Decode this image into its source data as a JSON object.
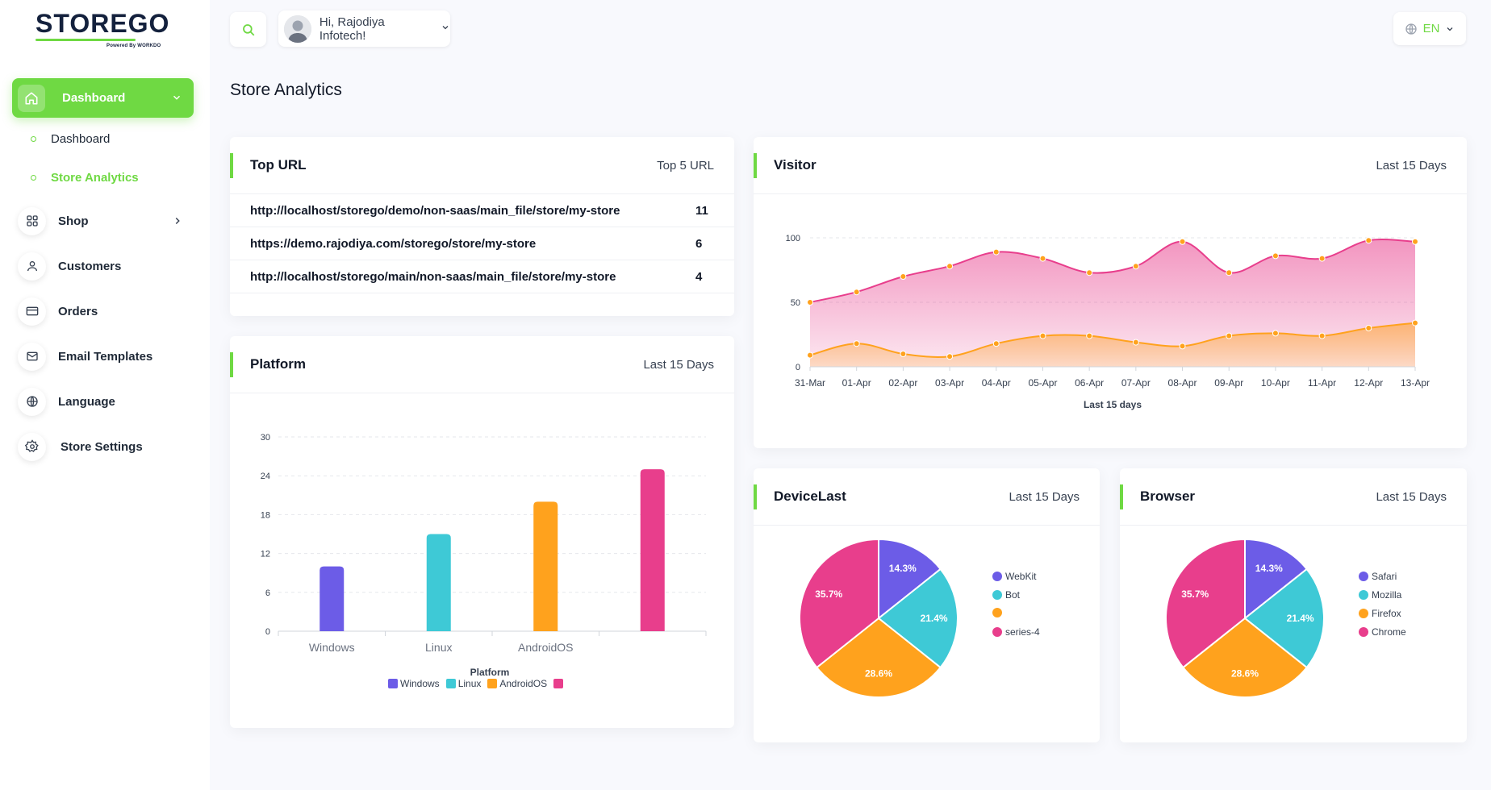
{
  "brand": {
    "name_part1": "STORE",
    "name_part2": "GO",
    "powered": "Powered By WORKDO"
  },
  "colors": {
    "accent": "#6fd943",
    "purple": "#6c5ce7",
    "teal": "#3ec9d6",
    "orange": "#ffa21d",
    "pink": "#e83e8c"
  },
  "sidebar": {
    "active": {
      "label": "Dashboard",
      "icon": "home-icon"
    },
    "sub_items": [
      {
        "label": "Dashboard"
      },
      {
        "label": "Store Analytics"
      }
    ],
    "items": [
      {
        "label": "Shop",
        "icon": "grid-icon"
      },
      {
        "label": "Customers",
        "icon": "user-icon"
      },
      {
        "label": "Orders",
        "icon": "credit-card-icon"
      },
      {
        "label": "Email Templates",
        "icon": "mail-icon"
      },
      {
        "label": "Language",
        "icon": "globe-icon"
      },
      {
        "label": "Store Settings",
        "icon": "settings-icon"
      }
    ]
  },
  "header": {
    "greeting": "Hi, Rajodiya Infotech!",
    "language": "EN"
  },
  "page": {
    "title": "Store Analytics"
  },
  "top_url": {
    "title": "Top URL",
    "subtitle": "Top 5 URL",
    "rows": [
      {
        "url": "http://localhost/storego/demo/non-saas/main_file/store/my-store",
        "count": "11"
      },
      {
        "url": "https://demo.rajodiya.com/storego/store/my-store",
        "count": "6"
      },
      {
        "url": "http://localhost/storego/main/non-saas/main_file/store/my-store",
        "count": "4"
      }
    ]
  },
  "platform": {
    "title": "Platform",
    "subtitle": "Last 15 Days"
  },
  "visitor": {
    "title": "Visitor",
    "subtitle": "Last 15 Days"
  },
  "device": {
    "title": "DeviceLast",
    "subtitle": "Last 15 Days"
  },
  "browser": {
    "title": "Browser",
    "subtitle": "Last 15 Days"
  },
  "chart_data": [
    {
      "type": "bar",
      "name": "platform",
      "categories": [
        "Windows",
        "Linux",
        "AndroidOS",
        ""
      ],
      "values": [
        10,
        15,
        20,
        25
      ],
      "colors": [
        "#6c5ce7",
        "#3ec9d6",
        "#ffa21d",
        "#e83e8c"
      ],
      "xlabel": "Platform",
      "ylabel": "",
      "ylim": [
        0,
        30
      ],
      "yticks": [
        0,
        6,
        12,
        18,
        24,
        30
      ],
      "legend": [
        "Windows",
        "Linux",
        "AndroidOS",
        ""
      ],
      "legend_position": "bottom",
      "grid": true
    },
    {
      "type": "area",
      "name": "visitor",
      "x": [
        "31-Mar",
        "01-Apr",
        "02-Apr",
        "03-Apr",
        "04-Apr",
        "05-Apr",
        "06-Apr",
        "07-Apr",
        "08-Apr",
        "09-Apr",
        "10-Apr",
        "11-Apr",
        "12-Apr",
        "13-Apr"
      ],
      "series": [
        {
          "values": [
            50,
            58,
            70,
            78,
            89,
            84,
            73,
            78,
            97,
            73,
            86,
            84,
            98,
            97
          ],
          "color": "#e83e8c"
        },
        {
          "values": [
            9,
            18,
            10,
            8,
            18,
            24,
            24,
            19,
            16,
            24,
            26,
            24,
            30,
            34
          ],
          "color": "#ffa21d"
        }
      ],
      "xlabel": "Last 15 days",
      "ylim": [
        0,
        100
      ],
      "yticks": [
        0,
        50,
        100
      ],
      "grid": true
    },
    {
      "type": "pie",
      "name": "device",
      "labels": [
        "WebKit",
        "Bot",
        "",
        "series-4"
      ],
      "values": [
        14.3,
        21.4,
        28.6,
        35.7
      ],
      "value_labels": [
        "14.3%",
        "21.4%",
        "28.6%",
        "35.7%"
      ],
      "colors": [
        "#6c5ce7",
        "#3ec9d6",
        "#ffa21d",
        "#e83e8c"
      ],
      "legend_position": "right"
    },
    {
      "type": "pie",
      "name": "browser",
      "labels": [
        "Safari",
        "Mozilla",
        "Firefox",
        "Chrome"
      ],
      "values": [
        14.3,
        21.4,
        28.6,
        35.7
      ],
      "value_labels": [
        "14.3%",
        "21.4%",
        "28.6%",
        "35.7%"
      ],
      "colors": [
        "#6c5ce7",
        "#3ec9d6",
        "#ffa21d",
        "#e83e8c"
      ],
      "legend_position": "right"
    }
  ]
}
